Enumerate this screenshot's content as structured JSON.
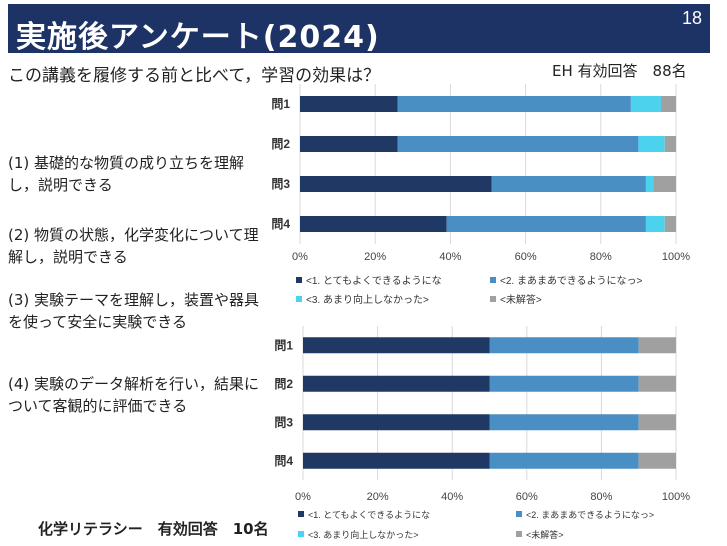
{
  "header": {
    "title": "実施後アンケート(2024)",
    "page_number": "18"
  },
  "question": "この講義を履修する前と比べて，学習の効果は？",
  "items": [
    "(1) 基礎的な物質の成り立ちを理解し，説明できる",
    "(2) 物質の状態，化学変化について理解し，説明できる",
    "(3) 実験テーマを理解し，装置や器具を使って安全に実験できる",
    "(4) 実験のデータ解析を行い，結果について客観的に評価できる"
  ],
  "chart1_respondents": "EH 有効回答　88名",
  "chart2_respondents": "化学リテラシー　有効回答　10名",
  "colors": {
    "title_bar": "#1d3265",
    "s1": "#1f3864",
    "s2": "#4a8fc4",
    "s3": "#4dd2ee",
    "s4": "#a0a0a0"
  },
  "chart_data": [
    {
      "type": "bar",
      "orientation": "horizontal",
      "stacked": true,
      "categories": [
        "問1",
        "問2",
        "問3",
        "問4"
      ],
      "series": [
        {
          "name": "<1. とてもよくできるようにな",
          "values": [
            26,
            26,
            51,
            39
          ]
        },
        {
          "name": "<2. まあまあできるようになっ>",
          "values": [
            62,
            64,
            41,
            53
          ]
        },
        {
          "name": "<3. あまり向上しなかった>",
          "values": [
            8,
            7,
            2,
            5
          ]
        },
        {
          "name": "<未解答>",
          "values": [
            4,
            3,
            6,
            3
          ]
        }
      ],
      "xticks": [
        "0%",
        "20%",
        "40%",
        "60%",
        "80%",
        "100%"
      ],
      "xlim": [
        0,
        100
      ],
      "grid": true,
      "legend_position": "bottom"
    },
    {
      "type": "bar",
      "orientation": "horizontal",
      "stacked": true,
      "categories": [
        "問1",
        "問2",
        "問3",
        "問4"
      ],
      "series": [
        {
          "name": "<1. とてもよくできるようにな",
          "values": [
            50,
            50,
            50,
            50
          ]
        },
        {
          "name": "<2. まあまあできるようになっ>",
          "values": [
            40,
            40,
            40,
            40
          ]
        },
        {
          "name": "<3. あまり向上しなかった>",
          "values": [
            0,
            0,
            0,
            0
          ]
        },
        {
          "name": "<未解答>",
          "values": [
            10,
            10,
            10,
            10
          ]
        }
      ],
      "xticks": [
        "0%",
        "20%",
        "40%",
        "60%",
        "80%",
        "100%"
      ],
      "xlim": [
        0,
        100
      ],
      "grid": true,
      "legend_position": "bottom"
    }
  ]
}
